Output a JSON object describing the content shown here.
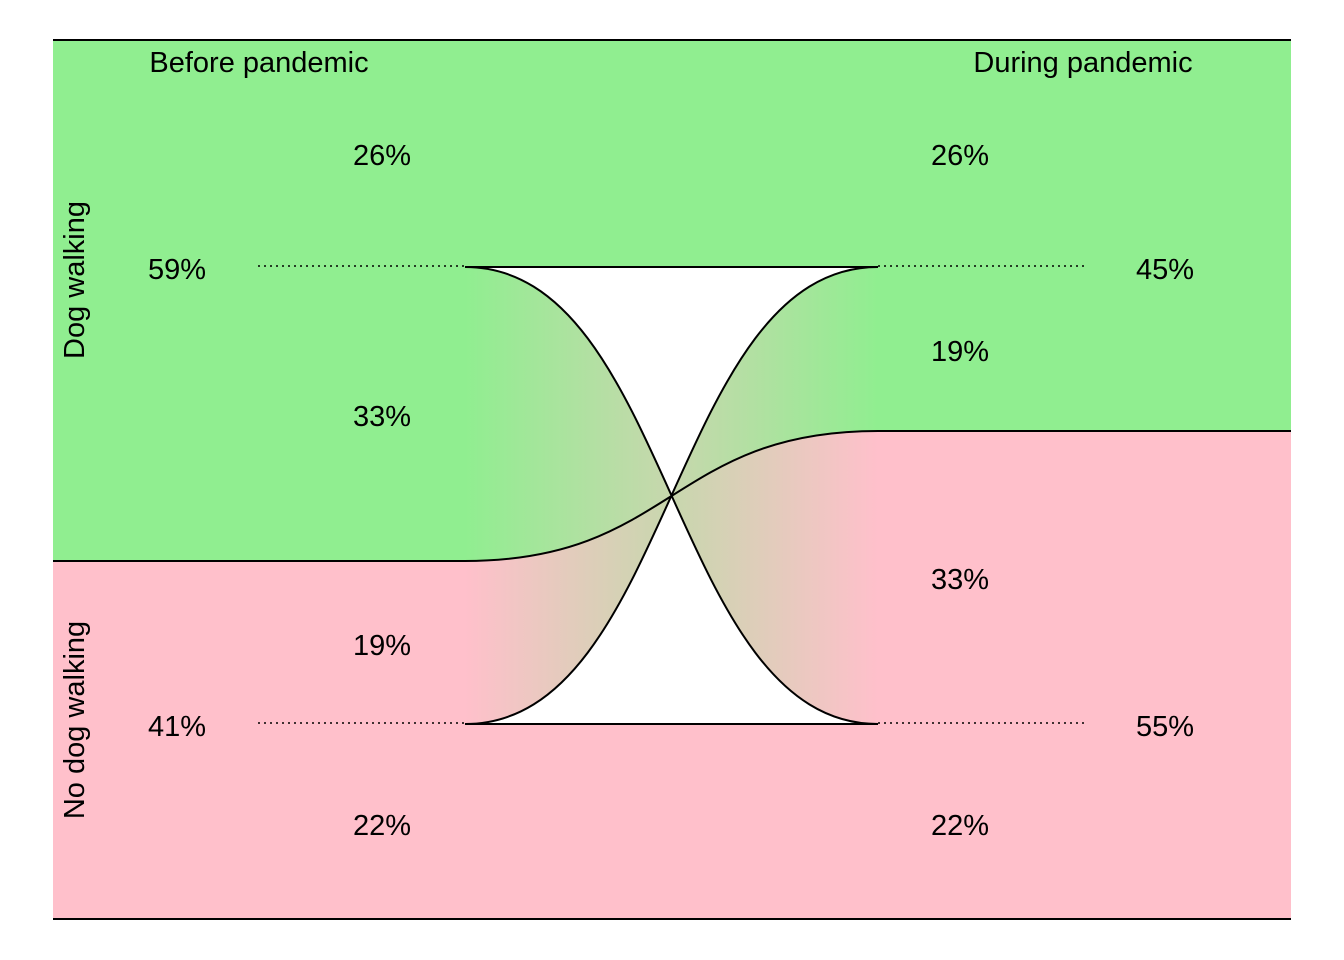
{
  "chart_data": {
    "type": "alluvial",
    "columns": [
      "Before pandemic",
      "During pandemic"
    ],
    "categories": [
      "Dog walking",
      "No dog walking"
    ],
    "colors": {
      "Dog walking": "#90EE90",
      "No dog walking": "#FFC0CB"
    },
    "before": {
      "Dog walking": 59,
      "No dog walking": 41
    },
    "during": {
      "Dog walking": 45,
      "No dog walking": 55
    },
    "flows": [
      {
        "from": "Dog walking",
        "to": "Dog walking",
        "value": 26
      },
      {
        "from": "Dog walking",
        "to": "No dog walking",
        "value": 33
      },
      {
        "from": "No dog walking",
        "to": "Dog walking",
        "value": 19
      },
      {
        "from": "No dog walking",
        "to": "No dog walking",
        "value": 22
      }
    ]
  },
  "labels": {
    "col_before": "Before pandemic",
    "col_during": "During pandemic",
    "row_dog": "Dog walking",
    "row_nodog": "No dog walking",
    "before_dog_total": "59%",
    "before_nodog_total": "41%",
    "during_dog_total": "45%",
    "during_nodog_total": "55%",
    "flow_dd_left": "26%",
    "flow_dn_left": "33%",
    "flow_nd_left": "19%",
    "flow_nn_left": "22%",
    "flow_dd_right": "26%",
    "flow_nd_right": "19%",
    "flow_dn_right": "33%",
    "flow_nn_right": "22%"
  }
}
